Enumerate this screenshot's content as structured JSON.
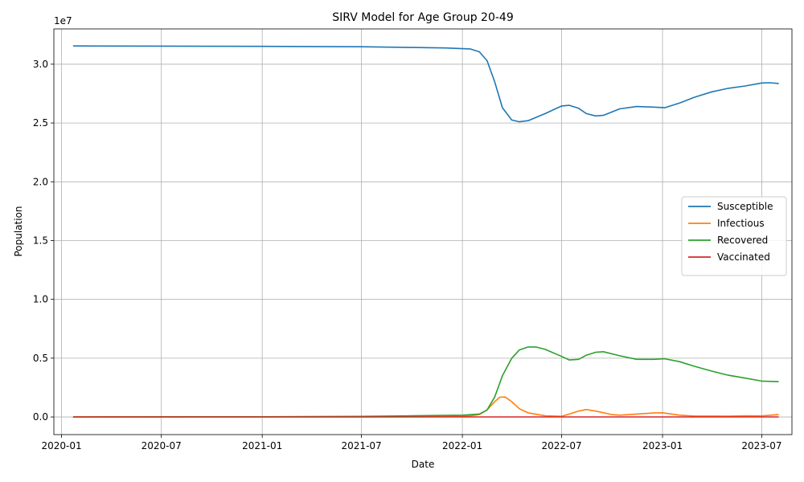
{
  "chart_data": {
    "type": "line",
    "title": "SIRV Model for Age Group 20-49",
    "xlabel": "Date",
    "ylabel": "Population",
    "y_scale_label": "1e7",
    "ylim": [
      -1500000,
      33000000
    ],
    "xlim": [
      "2019-12-18",
      "2023-08-25"
    ],
    "grid": true,
    "legend_position": "center-right",
    "x_ticks": [
      "2020-01",
      "2020-07",
      "2021-01",
      "2021-07",
      "2022-01",
      "2022-07",
      "2023-01",
      "2023-07"
    ],
    "x_tick_dates": [
      "2020-01-01",
      "2020-07-01",
      "2021-01-01",
      "2021-07-01",
      "2022-01-01",
      "2022-07-01",
      "2023-01-01",
      "2023-07-01"
    ],
    "y_ticks": [
      0,
      5000000,
      10000000,
      15000000,
      20000000,
      25000000,
      30000000
    ],
    "y_tick_labels": [
      "0.0",
      "0.5",
      "1.0",
      "1.5",
      "2.0",
      "2.5",
      "3.0"
    ],
    "series": [
      {
        "name": "Susceptible",
        "color": "#1f77b4",
        "points": [
          [
            "2020-01-22",
            31550000
          ],
          [
            "2020-07-01",
            31540000
          ],
          [
            "2021-01-01",
            31520000
          ],
          [
            "2021-07-01",
            31480000
          ],
          [
            "2021-10-01",
            31420000
          ],
          [
            "2021-12-01",
            31380000
          ],
          [
            "2022-01-15",
            31300000
          ],
          [
            "2022-02-01",
            31050000
          ],
          [
            "2022-02-15",
            30300000
          ],
          [
            "2022-03-01",
            28500000
          ],
          [
            "2022-03-15",
            26300000
          ],
          [
            "2022-04-01",
            25250000
          ],
          [
            "2022-04-15",
            25100000
          ],
          [
            "2022-05-01",
            25200000
          ],
          [
            "2022-06-01",
            25800000
          ],
          [
            "2022-07-01",
            26450000
          ],
          [
            "2022-07-15",
            26500000
          ],
          [
            "2022-08-01",
            26250000
          ],
          [
            "2022-08-15",
            25800000
          ],
          [
            "2022-09-01",
            25600000
          ],
          [
            "2022-09-15",
            25650000
          ],
          [
            "2022-10-15",
            26200000
          ],
          [
            "2022-11-15",
            26400000
          ],
          [
            "2022-12-15",
            26350000
          ],
          [
            "2023-01-05",
            26300000
          ],
          [
            "2023-02-01",
            26700000
          ],
          [
            "2023-03-01",
            27200000
          ],
          [
            "2023-04-01",
            27650000
          ],
          [
            "2023-05-01",
            27950000
          ],
          [
            "2023-06-01",
            28150000
          ],
          [
            "2023-07-01",
            28400000
          ],
          [
            "2023-07-15",
            28420000
          ],
          [
            "2023-08-01",
            28360000
          ]
        ]
      },
      {
        "name": "Infectious",
        "color": "#ff7f0e",
        "points": [
          [
            "2020-01-22",
            0
          ],
          [
            "2021-07-01",
            10000
          ],
          [
            "2021-12-01",
            40000
          ],
          [
            "2022-01-15",
            90000
          ],
          [
            "2022-02-01",
            200000
          ],
          [
            "2022-02-15",
            600000
          ],
          [
            "2022-03-01",
            1300000
          ],
          [
            "2022-03-10",
            1680000
          ],
          [
            "2022-03-20",
            1700000
          ],
          [
            "2022-04-01",
            1300000
          ],
          [
            "2022-04-15",
            700000
          ],
          [
            "2022-05-01",
            350000
          ],
          [
            "2022-06-01",
            100000
          ],
          [
            "2022-07-01",
            60000
          ],
          [
            "2022-07-15",
            250000
          ],
          [
            "2022-08-01",
            500000
          ],
          [
            "2022-08-15",
            630000
          ],
          [
            "2022-09-01",
            500000
          ],
          [
            "2022-10-01",
            200000
          ],
          [
            "2022-10-15",
            150000
          ],
          [
            "2022-11-15",
            250000
          ],
          [
            "2022-12-15",
            340000
          ],
          [
            "2023-01-01",
            360000
          ],
          [
            "2023-02-01",
            150000
          ],
          [
            "2023-03-01",
            80000
          ],
          [
            "2023-05-01",
            70000
          ],
          [
            "2023-06-01",
            100000
          ],
          [
            "2023-07-01",
            90000
          ],
          [
            "2023-08-01",
            200000
          ]
        ]
      },
      {
        "name": "Recovered",
        "color": "#2ca02c",
        "points": [
          [
            "2020-01-22",
            0
          ],
          [
            "2021-01-01",
            20000
          ],
          [
            "2021-07-01",
            50000
          ],
          [
            "2021-10-01",
            100000
          ],
          [
            "2022-01-01",
            150000
          ],
          [
            "2022-02-01",
            250000
          ],
          [
            "2022-02-15",
            600000
          ],
          [
            "2022-03-01",
            1700000
          ],
          [
            "2022-03-15",
            3500000
          ],
          [
            "2022-04-01",
            5000000
          ],
          [
            "2022-04-15",
            5700000
          ],
          [
            "2022-05-01",
            5950000
          ],
          [
            "2022-05-15",
            5950000
          ],
          [
            "2022-06-01",
            5750000
          ],
          [
            "2022-07-01",
            5150000
          ],
          [
            "2022-07-15",
            4850000
          ],
          [
            "2022-08-01",
            4900000
          ],
          [
            "2022-08-15",
            5250000
          ],
          [
            "2022-09-01",
            5500000
          ],
          [
            "2022-09-15",
            5550000
          ],
          [
            "2022-10-15",
            5200000
          ],
          [
            "2022-11-15",
            4900000
          ],
          [
            "2022-12-15",
            4900000
          ],
          [
            "2023-01-05",
            4950000
          ],
          [
            "2023-02-01",
            4700000
          ],
          [
            "2023-03-01",
            4300000
          ],
          [
            "2023-04-01",
            3900000
          ],
          [
            "2023-05-01",
            3550000
          ],
          [
            "2023-06-01",
            3300000
          ],
          [
            "2023-07-01",
            3050000
          ],
          [
            "2023-08-01",
            3000000
          ]
        ]
      },
      {
        "name": "Vaccinated",
        "color": "#d62728",
        "points": [
          [
            "2020-01-22",
            0
          ],
          [
            "2023-08-01",
            0
          ]
        ]
      }
    ]
  }
}
